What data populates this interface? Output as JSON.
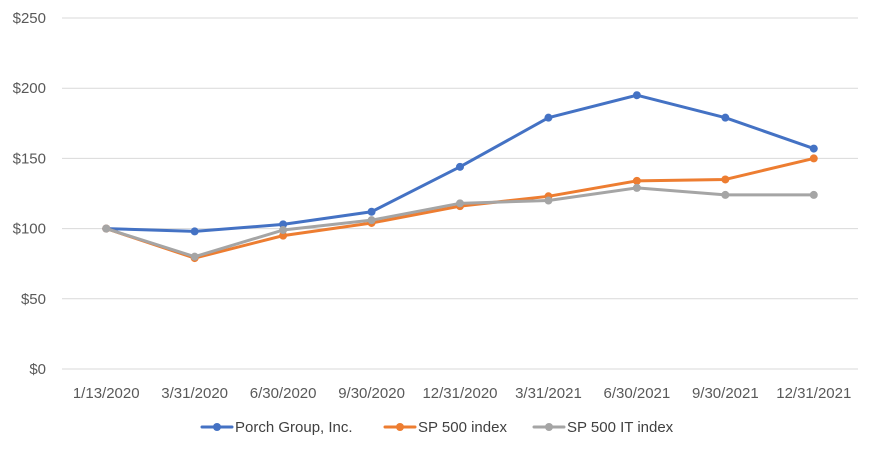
{
  "chart_data": {
    "type": "line",
    "title": "",
    "xlabel": "",
    "ylabel": "",
    "categories": [
      "1/13/2020",
      "3/31/2020",
      "6/30/2020",
      "9/30/2020",
      "12/31/2020",
      "3/31/2021",
      "6/30/2021",
      "9/30/2021",
      "12/31/2021"
    ],
    "ylim": [
      0,
      250
    ],
    "yticks": [
      0,
      50,
      100,
      150,
      200,
      250
    ],
    "ytick_labels": [
      "$0",
      "$50",
      "$100",
      "$150",
      "$200",
      "$250"
    ],
    "grid": "horizontal",
    "legend_position": "bottom",
    "series": [
      {
        "name": "Porch Group, Inc.",
        "color": "#4472C4",
        "values": [
          100,
          98,
          103,
          112,
          144,
          179,
          195,
          179,
          157
        ]
      },
      {
        "name": "SP 500 index",
        "color": "#ED7D31",
        "values": [
          100,
          79,
          95,
          104,
          116,
          123,
          134,
          135,
          150
        ]
      },
      {
        "name": "SP 500 IT index",
        "color": "#A5A5A5",
        "values": [
          100,
          80,
          99,
          106,
          118,
          120,
          129,
          124,
          124
        ]
      }
    ]
  }
}
